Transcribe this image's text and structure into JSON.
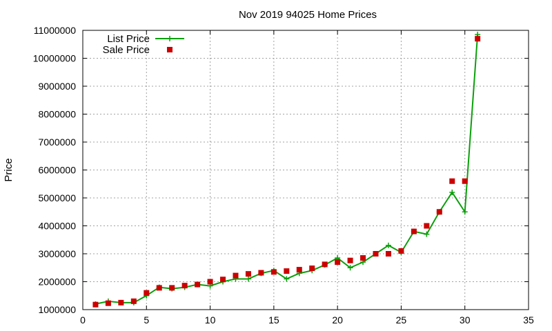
{
  "chart_data": {
    "type": "line",
    "title": "Nov 2019 94025 Home Prices",
    "xlabel": "",
    "ylabel": "Price",
    "xlim": [
      0,
      35
    ],
    "ylim": [
      1000000,
      11000000
    ],
    "x_ticks": [
      0,
      5,
      10,
      15,
      20,
      25,
      30,
      35
    ],
    "y_ticks": [
      1000000,
      2000000,
      3000000,
      4000000,
      5000000,
      6000000,
      7000000,
      8000000,
      9000000,
      10000000,
      11000000
    ],
    "grid": true,
    "legend_position": "top-left",
    "series": [
      {
        "name": "List Price",
        "style": "line-with-plus-markers",
        "color": "#0a9f0a",
        "x": [
          1,
          2,
          3,
          4,
          5,
          6,
          7,
          8,
          9,
          10,
          11,
          12,
          13,
          14,
          15,
          16,
          17,
          18,
          19,
          20,
          21,
          22,
          23,
          24,
          25,
          26,
          27,
          28,
          29,
          30,
          31
        ],
        "values": [
          1200000,
          1300000,
          1250000,
          1250000,
          1500000,
          1800000,
          1750000,
          1800000,
          1900000,
          1850000,
          2000000,
          2100000,
          2100000,
          2300000,
          2400000,
          2100000,
          2300000,
          2400000,
          2600000,
          2850000,
          2500000,
          2700000,
          3000000,
          3300000,
          3050000,
          3800000,
          3700000,
          4500000,
          5200000,
          4500000,
          10850000
        ]
      },
      {
        "name": "Sale Price",
        "style": "square-markers",
        "color": "#cc0000",
        "x": [
          1,
          2,
          3,
          4,
          5,
          6,
          7,
          8,
          9,
          10,
          11,
          12,
          13,
          14,
          15,
          16,
          17,
          18,
          19,
          20,
          21,
          22,
          23,
          24,
          25,
          26,
          27,
          28,
          29,
          30,
          31
        ],
        "values": [
          1180000,
          1230000,
          1250000,
          1300000,
          1600000,
          1780000,
          1780000,
          1860000,
          1900000,
          2000000,
          2080000,
          2220000,
          2280000,
          2320000,
          2350000,
          2380000,
          2430000,
          2480000,
          2620000,
          2700000,
          2760000,
          2850000,
          3000000,
          3000000,
          3100000,
          3800000,
          4000000,
          4500000,
          5600000,
          5600000,
          10700000
        ]
      }
    ]
  }
}
